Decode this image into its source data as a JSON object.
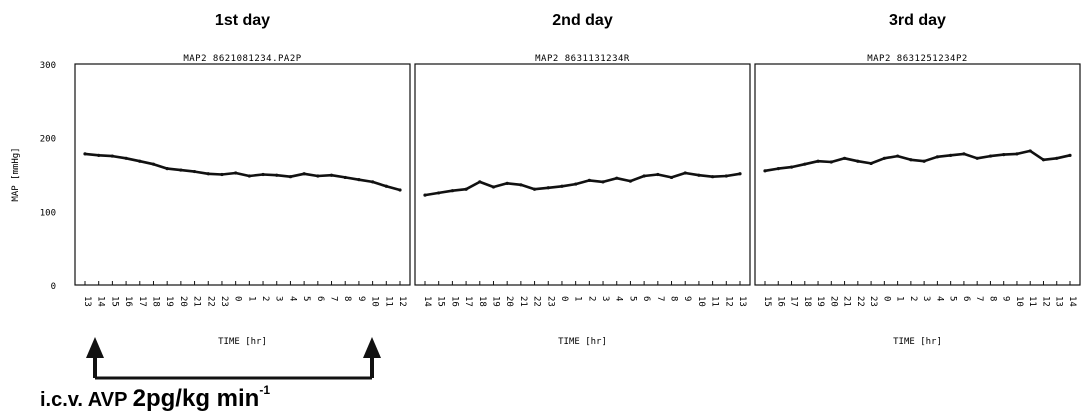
{
  "chart_data": {
    "type": "line",
    "ylabel": "MAP [mmHg]",
    "ylim": [
      0,
      300
    ],
    "y_ticks": [
      "0",
      "100",
      "200",
      "300"
    ],
    "y_tick_values": [
      0,
      100,
      200,
      300
    ],
    "xlabel": "TIME [hr]",
    "panels": [
      {
        "day_title": "1st day",
        "title": "MAP2 8621081234.PA2P",
        "xlabel": "TIME [hr]",
        "hours": [
          "13",
          "14",
          "15",
          "16",
          "17",
          "18",
          "19",
          "20",
          "21",
          "22",
          "23",
          "0",
          "1",
          "2",
          "3",
          "4",
          "5",
          "6",
          "7",
          "8",
          "9",
          "10",
          "11",
          "12"
        ],
        "y_values": [
          178,
          176,
          175,
          172,
          168,
          164,
          158,
          156,
          154,
          151,
          150,
          152,
          148,
          150,
          149,
          147,
          151,
          148,
          149,
          146,
          143,
          140,
          134,
          129
        ]
      },
      {
        "day_title": "2nd day",
        "title": "MAP2 8631131234R",
        "xlabel": "TIME [hr]",
        "hours": [
          "14",
          "15",
          "16",
          "17",
          "18",
          "19",
          "20",
          "21",
          "22",
          "23",
          "0",
          "1",
          "2",
          "3",
          "4",
          "5",
          "6",
          "7",
          "8",
          "9",
          "10",
          "11",
          "12",
          "13"
        ],
        "y_values": [
          122,
          125,
          128,
          130,
          140,
          133,
          138,
          136,
          130,
          132,
          134,
          137,
          142,
          140,
          145,
          141,
          148,
          150,
          146,
          152,
          149,
          147,
          148,
          151
        ]
      },
      {
        "day_title": "3rd day",
        "title": "MAP2 8631251234P2",
        "xlabel": "TIME [hr]",
        "hours": [
          "15",
          "16",
          "17",
          "18",
          "19",
          "20",
          "21",
          "22",
          "23",
          "0",
          "1",
          "2",
          "3",
          "4",
          "5",
          "6",
          "7",
          "8",
          "9",
          "10",
          "11",
          "12",
          "13",
          "14"
        ],
        "y_values": [
          155,
          158,
          160,
          164,
          168,
          167,
          172,
          168,
          165,
          172,
          175,
          170,
          168,
          174,
          176,
          178,
          172,
          175,
          177,
          178,
          182,
          170,
          172,
          176
        ]
      }
    ]
  },
  "annotation": {
    "text_main": "i.c.v. AVP ",
    "text_dose": "2pg/kg min",
    "text_sup": "-1"
  }
}
